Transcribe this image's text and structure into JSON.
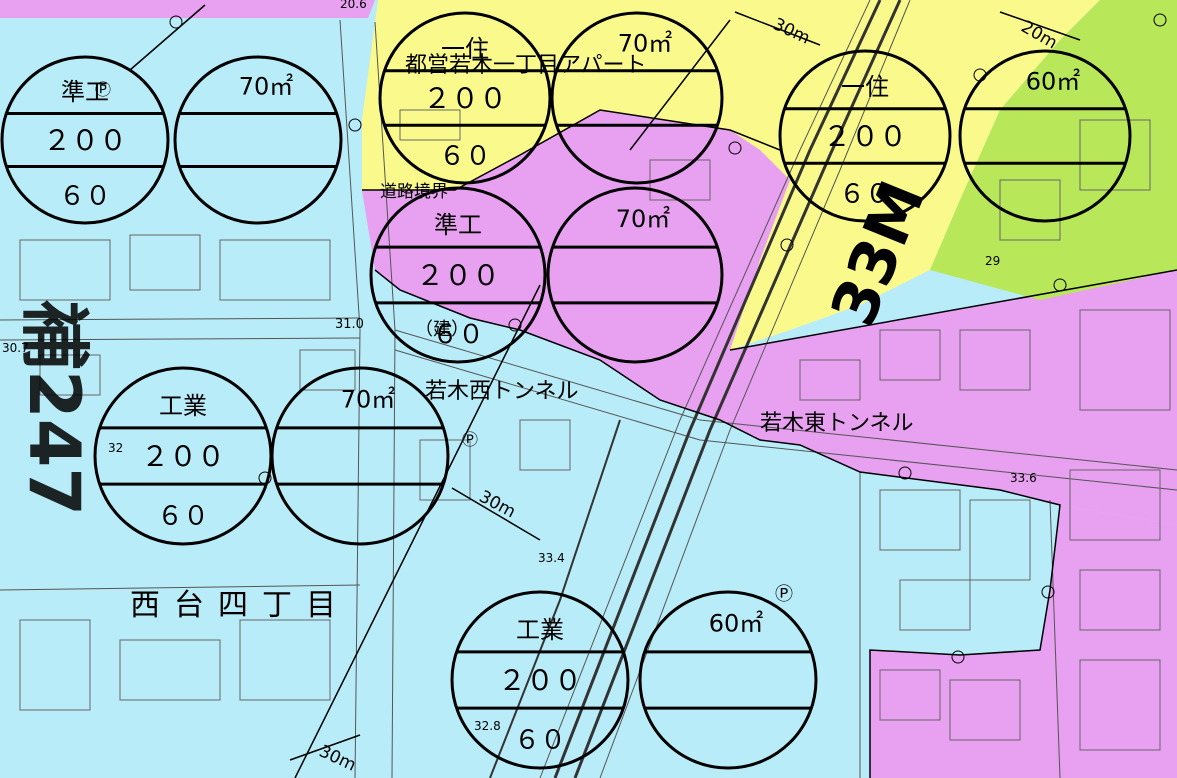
{
  "colors": {
    "industrial_zone": "#b8ecf8",
    "quasi_industrial_zone": "#e8a0f0",
    "residential_1_zone": "#fafa8c",
    "residential_green_zone": "#b8e85a",
    "ink": "#000000"
  },
  "zone_circles": [
    {
      "id": "a",
      "zone": "準工",
      "far": "２００",
      "bcr": "６０",
      "height": "70㎡"
    },
    {
      "id": "b",
      "zone": "一住",
      "far": "２００",
      "bcr": "６０",
      "height": "70㎡"
    },
    {
      "id": "c",
      "zone": "一住",
      "far": "２００",
      "bcr": "６０",
      "height": "60㎡"
    },
    {
      "id": "d",
      "zone": "準工",
      "far": "２００",
      "bcr": "６０",
      "height": "70㎡"
    },
    {
      "id": "e",
      "zone": "工業",
      "far": "２００",
      "bcr": "６０",
      "height": "70㎡"
    },
    {
      "id": "f",
      "zone": "工業",
      "far": "２００",
      "bcr": "６０",
      "height": "60㎡"
    }
  ],
  "place_labels": {
    "route_247": "補247",
    "nishidai": "西台四丁目",
    "wakagi_west_tunnel": "若木西トンネル",
    "wakagi_east_tunnel": "若木東トンネル",
    "toei_apartment": "都営若木一丁目アパート",
    "road_boundary": "道路境界",
    "route_33m": "33M",
    "ken_mark": "（建）"
  },
  "distance_labels": [
    "30m",
    "30m",
    "30m",
    "20m"
  ],
  "elevations": [
    "20.6",
    "31.0",
    "30.7",
    "32",
    "33.4",
    "33.6",
    "32.8",
    "29"
  ],
  "markers": [
    "Ⓟ",
    "Ⓟ",
    "Ⓟ"
  ]
}
